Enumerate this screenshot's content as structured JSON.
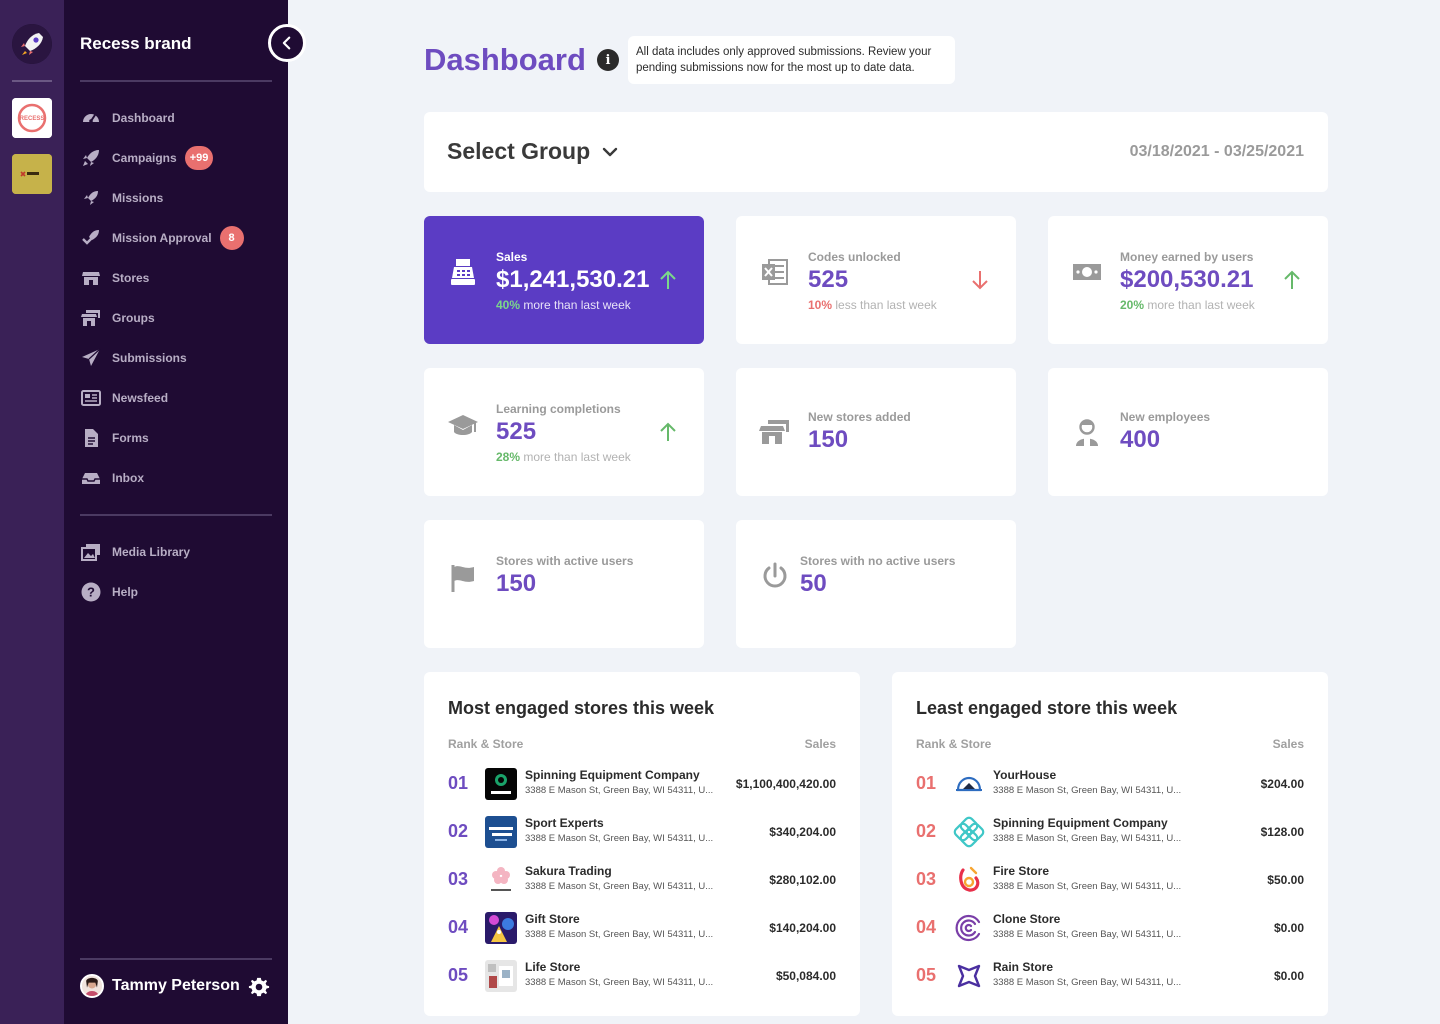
{
  "sidebar": {
    "brand_title": "Recess brand",
    "nav": [
      {
        "label": "Dashboard",
        "icon": "dashboard-gauge-icon"
      },
      {
        "label": "Campaigns",
        "icon": "rocket-icon",
        "badge": "+99"
      },
      {
        "label": "Missions",
        "icon": "rocket-small-icon"
      },
      {
        "label": "Mission Approval",
        "icon": "rocket-check-icon",
        "badge": "8"
      },
      {
        "label": "Stores",
        "icon": "store-icon"
      },
      {
        "label": "Groups",
        "icon": "stores-group-icon"
      },
      {
        "label": "Submissions",
        "icon": "paper-plane-icon"
      },
      {
        "label": "Newsfeed",
        "icon": "newspaper-icon"
      },
      {
        "label": "Forms",
        "icon": "document-icon"
      },
      {
        "label": "Inbox",
        "icon": "inbox-tray-icon"
      }
    ],
    "secondary_nav": [
      {
        "label": "Media Library",
        "icon": "media-library-icon"
      },
      {
        "label": "Help",
        "icon": "help-circle-icon"
      }
    ],
    "user_name": "Tammy Peterson"
  },
  "header": {
    "title": "Dashboard",
    "info_tooltip": "All data includes only approved submissions. Review your pending submissions now for the most up to date data."
  },
  "group_bar": {
    "select_label": "Select Group",
    "date_range": "03/18/2021 - 03/25/2021"
  },
  "stats": {
    "sales": {
      "label": "Sales",
      "value": "$1,241,530.21",
      "pct": "40%",
      "note": " more than last week",
      "trend": "up"
    },
    "codes": {
      "label": "Codes unlocked",
      "value": "525",
      "pct": "10%",
      "note": " less than last week",
      "trend": "down"
    },
    "money": {
      "label": "Money earned by users",
      "value": "$200,530.21",
      "pct": "20%",
      "note": " more than last week",
      "trend": "up"
    },
    "learning": {
      "label": "Learning completions",
      "value": "525",
      "pct": "28%",
      "note": " more than last week",
      "trend": "up"
    },
    "new_stores": {
      "label": "New stores added",
      "value": "150"
    },
    "new_employees": {
      "label": "New employees",
      "value": "400"
    },
    "active_stores": {
      "label": "Stores with active users",
      "value": "150"
    },
    "inactive_stores": {
      "label": "Stores with no active users",
      "value": "50"
    }
  },
  "most_engaged": {
    "title": "Most engaged stores this week",
    "col_left": "Rank & Store",
    "col_right": "Sales",
    "rows": [
      {
        "rank": "01",
        "name": "Spinning Equipment Company",
        "address": "3388 E Mason St, Green Bay, WI 54311, U...",
        "sales": "$1,100,400,420.00"
      },
      {
        "rank": "02",
        "name": "Sport Experts",
        "address": "3388 E Mason St, Green Bay, WI 54311, U...",
        "sales": "$340,204.00"
      },
      {
        "rank": "03",
        "name": "Sakura Trading",
        "address": "3388 E Mason St, Green Bay, WI 54311, U...",
        "sales": "$280,102.00"
      },
      {
        "rank": "04",
        "name": "Gift Store",
        "address": "3388 E Mason St, Green Bay, WI 54311, U...",
        "sales": "$140,204.00"
      },
      {
        "rank": "05",
        "name": "Life Store",
        "address": "3388 E Mason St, Green Bay, WI 54311, U...",
        "sales": "$50,084.00"
      }
    ]
  },
  "least_engaged": {
    "title": "Least engaged store this week",
    "col_left": "Rank & Store",
    "col_right": "Sales",
    "rows": [
      {
        "rank": "01",
        "name": "YourHouse",
        "address": "3388 E Mason St, Green Bay, WI 54311, U...",
        "sales": "$204.00"
      },
      {
        "rank": "02",
        "name": "Spinning Equipment Company",
        "address": "3388 E Mason St, Green Bay, WI 54311, U...",
        "sales": "$128.00"
      },
      {
        "rank": "03",
        "name": "Fire Store",
        "address": "3388 E Mason St, Green Bay, WI 54311, U...",
        "sales": "$50.00"
      },
      {
        "rank": "04",
        "name": "Clone Store",
        "address": "3388 E Mason St, Green Bay, WI 54311, U...",
        "sales": "$0.00"
      },
      {
        "rank": "05",
        "name": "Rain Store",
        "address": "3388 E Mason St, Green Bay, WI 54311, U...",
        "sales": "$0.00"
      }
    ]
  },
  "colors": {
    "accent": "#6e4cc0",
    "primary_card": "#5b3cc4",
    "sidebar": "#1f0b33",
    "rail": "#3a2157",
    "up": "#66b96a",
    "down": "#e9706f"
  }
}
